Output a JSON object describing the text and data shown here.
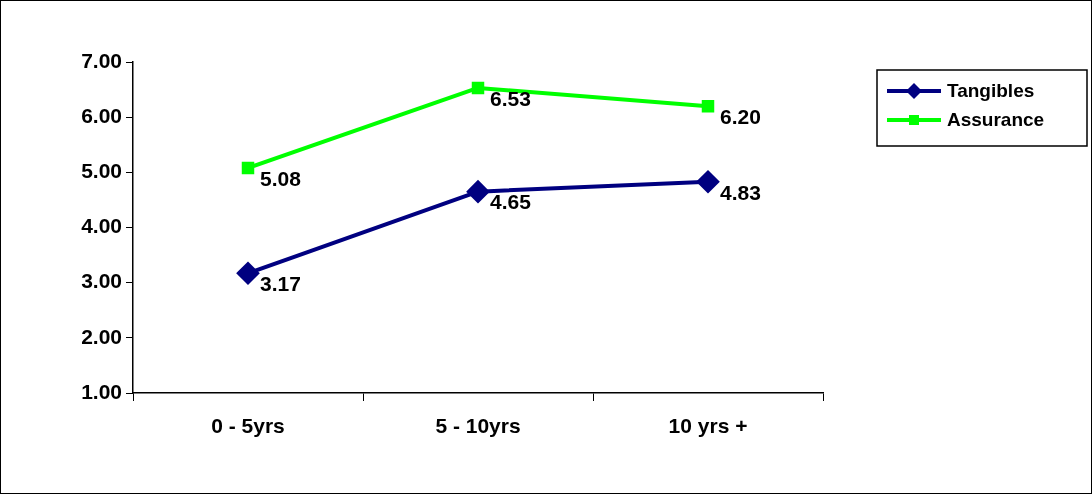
{
  "chart_data": {
    "type": "line",
    "categories": [
      "0 - 5yrs",
      "5 - 10yrs",
      "10 yrs +"
    ],
    "series": [
      {
        "name": "Tangibles",
        "color": "#000080",
        "values": [
          3.17,
          4.65,
          4.83
        ],
        "value_labels": [
          "3.17",
          "4.65",
          "4.83"
        ],
        "marker": "diamond"
      },
      {
        "name": "Assurance",
        "color": "#00ff00",
        "values": [
          5.08,
          6.53,
          6.2
        ],
        "value_labels": [
          "5.08",
          "6.53",
          "6.20"
        ],
        "marker": "square"
      }
    ],
    "ylim": [
      1,
      7
    ],
    "yticks": [
      {
        "value": 1,
        "label": "1.00"
      },
      {
        "value": 2,
        "label": "2.00"
      },
      {
        "value": 3,
        "label": "3.00"
      },
      {
        "value": 4,
        "label": "4.00"
      },
      {
        "value": 5,
        "label": "5.00"
      },
      {
        "value": 6,
        "label": "6.00"
      },
      {
        "value": 7,
        "label": "7.00"
      }
    ],
    "legend": "top right",
    "line_style": "solid"
  }
}
